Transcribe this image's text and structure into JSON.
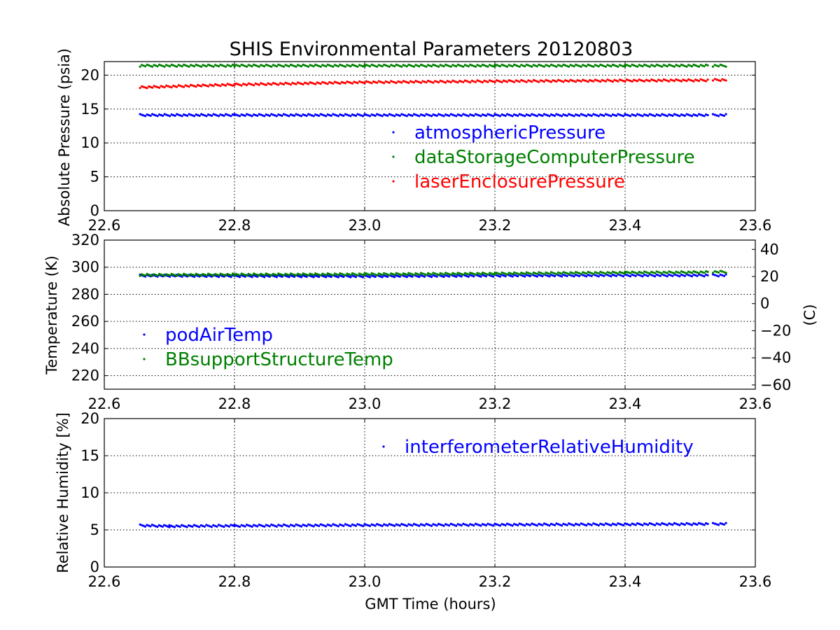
{
  "figure": {
    "title": "SHIS Environmental Parameters 20120803"
  },
  "chart_data": [
    {
      "type": "scatter",
      "ylabel": "Absolute Pressure (psia)",
      "xlabel": "",
      "xlim": [
        22.6,
        23.6
      ],
      "ylim": [
        0,
        22
      ],
      "xticks": [
        "22.6",
        "22.8",
        "23.0",
        "23.2",
        "23.4",
        "23.6"
      ],
      "yticks": [
        "0",
        "5",
        "10",
        "15",
        "20"
      ],
      "grid": true,
      "legend_position": "right",
      "gaps": [
        [
          23.527,
          23.535
        ]
      ],
      "series": [
        {
          "name": "atmosphericPressure",
          "color": "#0000ff",
          "x": [
            22.655,
            22.8,
            23.0,
            23.2,
            23.4,
            23.527,
            23.535,
            23.555
          ],
          "y": [
            14.1,
            14.1,
            14.1,
            14.1,
            14.1,
            14.1,
            14.1,
            14.1
          ]
        },
        {
          "name": "dataStorageComputerPressure",
          "color": "#008000",
          "x": [
            22.655,
            22.8,
            23.0,
            23.2,
            23.4,
            23.527,
            23.535,
            23.555
          ],
          "y": [
            21.4,
            21.4,
            21.4,
            21.4,
            21.4,
            21.4,
            21.4,
            21.4
          ]
        },
        {
          "name": "laserEnclosurePressure",
          "color": "#ff0000",
          "x": [
            22.655,
            22.8,
            23.0,
            23.2,
            23.4,
            23.527,
            23.535,
            23.555
          ],
          "y": [
            18.2,
            18.6,
            18.95,
            19.1,
            19.2,
            19.25,
            19.3,
            19.3
          ]
        }
      ]
    },
    {
      "type": "scatter",
      "ylabel": "Temperature (K)",
      "y2label": "(C)",
      "xlabel": "",
      "xlim": [
        22.6,
        23.6
      ],
      "ylim": [
        210,
        320
      ],
      "y2lim": [
        -63.15,
        46.85
      ],
      "xticks": [
        "22.6",
        "22.8",
        "23.0",
        "23.2",
        "23.4",
        "23.6"
      ],
      "yticks": [
        "220",
        "240",
        "260",
        "280",
        "300",
        "320"
      ],
      "y2ticks": [
        "−60",
        "−40",
        "−20",
        "0",
        "20",
        "40"
      ],
      "grid": true,
      "legend_position": "lower-left",
      "gaps": [
        [
          23.527,
          23.535
        ]
      ],
      "series": [
        {
          "name": "podAirTemp",
          "color": "#0000ff",
          "x": [
            22.655,
            22.8,
            23.0,
            23.2,
            23.4,
            23.527,
            23.535,
            23.555
          ],
          "y": [
            293.8,
            293.5,
            293.3,
            293.8,
            294.0,
            294.0,
            294.0,
            294.0
          ]
        },
        {
          "name": "BBsupportStructureTemp",
          "color": "#008000",
          "x": [
            22.655,
            22.8,
            23.0,
            23.2,
            23.4,
            23.527,
            23.535,
            23.555
          ],
          "y": [
            294.3,
            294.5,
            294.8,
            295.3,
            296.0,
            296.3,
            296.5,
            296.6
          ]
        }
      ]
    },
    {
      "type": "scatter",
      "ylabel": "Relative Humidity [%]",
      "xlabel": "GMT Time (hours)",
      "xlim": [
        22.6,
        23.6
      ],
      "ylim": [
        0,
        20
      ],
      "xticks": [
        "22.6",
        "22.8",
        "23.0",
        "23.2",
        "23.4",
        "23.6"
      ],
      "yticks": [
        "0",
        "5",
        "10",
        "15",
        "20"
      ],
      "grid": true,
      "legend_position": "upper-right",
      "gaps": [
        [
          23.527,
          23.535
        ]
      ],
      "series": [
        {
          "name": "interferometerRelativeHumidity",
          "color": "#0000ff",
          "x": [
            22.655,
            22.7,
            22.8,
            23.0,
            23.2,
            23.4,
            23.527,
            23.535,
            23.555
          ],
          "y": [
            5.6,
            5.5,
            5.55,
            5.65,
            5.7,
            5.75,
            5.8,
            5.8,
            5.8
          ]
        }
      ]
    }
  ]
}
